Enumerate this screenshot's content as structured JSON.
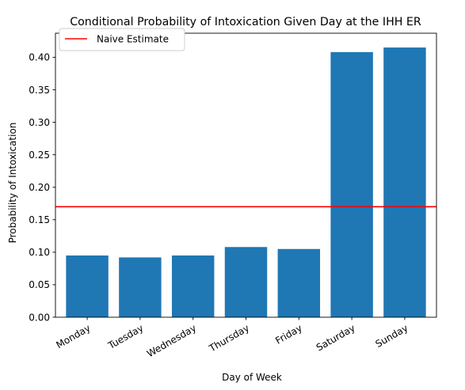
{
  "chart_data": {
    "type": "bar",
    "title": "Conditional Probability of Intoxication Given Day at the IHH ER",
    "xlabel": "Day of Week",
    "ylabel": "Probability of Intoxication",
    "categories": [
      "Monday",
      "Tuesday",
      "Wednesday",
      "Thursday",
      "Friday",
      "Saturday",
      "Sunday"
    ],
    "values": [
      0.095,
      0.092,
      0.095,
      0.108,
      0.105,
      0.408,
      0.415
    ],
    "ylim": [
      0,
      0.437
    ],
    "yticks": [
      0.0,
      0.05,
      0.1,
      0.15,
      0.2,
      0.25,
      0.3,
      0.35,
      0.4
    ],
    "ytick_labels": [
      "0.00",
      "0.05",
      "0.10",
      "0.15",
      "0.20",
      "0.25",
      "0.30",
      "0.35",
      "0.40"
    ],
    "bar_color": "#1f77b4",
    "reference_line": {
      "label": "Naive Estimate",
      "value": 0.17,
      "color": "#ff0000"
    },
    "legend_position": "top-left",
    "grid": false,
    "xtick_rotation_deg": 30
  }
}
